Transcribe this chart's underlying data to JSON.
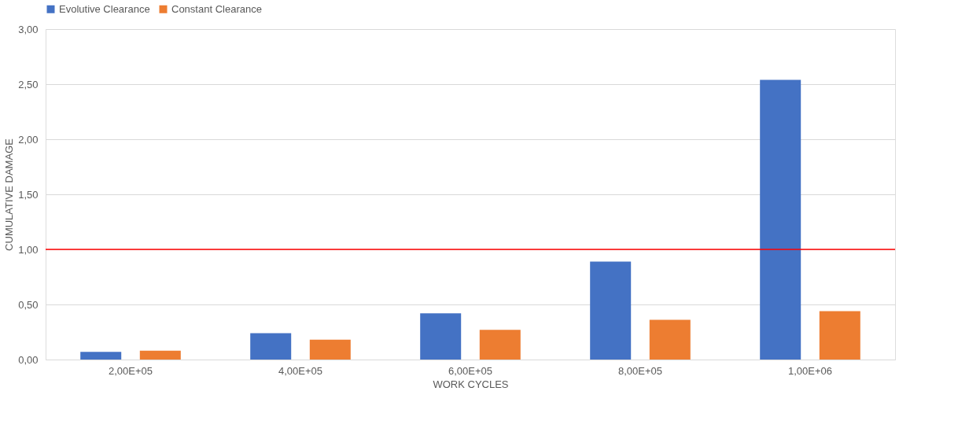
{
  "chart_data": {
    "type": "bar",
    "xlabel": "WORK CYCLES",
    "ylabel": "CUMULATIVE DAMAGE",
    "categories": [
      "2,00E+05",
      "4,00E+05",
      "6,00E+05",
      "8,00E+05",
      "1,00E+06"
    ],
    "series": [
      {
        "name": "Evolutive Clearance",
        "color": "#4472c4",
        "values": [
          0.07,
          0.24,
          0.42,
          0.89,
          2.54
        ]
      },
      {
        "name": "Constant Clearance",
        "color": "#ed7d31",
        "values": [
          0.08,
          0.18,
          0.27,
          0.36,
          0.44
        ]
      }
    ],
    "ylim": [
      0,
      3
    ],
    "yticks": [
      {
        "value": 0,
        "label": "0,00"
      },
      {
        "value": 0.5,
        "label": "0,50"
      },
      {
        "value": 1,
        "label": "1,00"
      },
      {
        "value": 1.5,
        "label": "1,50"
      },
      {
        "value": 2,
        "label": "2,00"
      },
      {
        "value": 2.5,
        "label": "2,50"
      },
      {
        "value": 3,
        "label": "3,00"
      }
    ],
    "ref_lines": [
      {
        "axis": "y",
        "value": 1,
        "color": "#ff0000"
      }
    ],
    "grid": "y",
    "legend": "top"
  }
}
